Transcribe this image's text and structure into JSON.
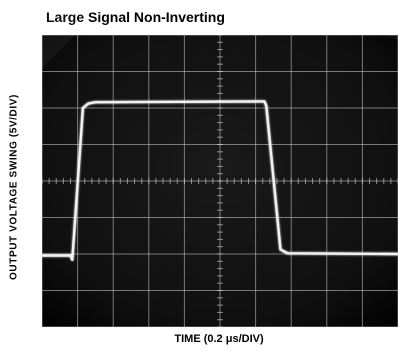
{
  "chart_data": {
    "type": "line",
    "title": "Large Signal Non-Inverting",
    "xlabel": "TIME (0.2 μs/DIV)",
    "ylabel": "OUTPUT VOLTAGE SWING (5V/DIV)",
    "x_unit": "μs",
    "y_unit": "V",
    "xlim": [
      0,
      2.0
    ],
    "ylim": [
      -20,
      20
    ],
    "x_per_div": 0.2,
    "y_per_div": 5,
    "grid": true,
    "background": "oscilloscope-photo",
    "trace_color": "#f2f2f2",
    "series": [
      {
        "x": [
          0,
          0.16,
          0.17,
          0.23,
          0.26,
          0.3,
          1.25,
          1.26,
          1.34,
          1.38,
          2.0
        ],
        "values": [
          -10.2,
          -10.2,
          -10.8,
          10.0,
          10.6,
          10.8,
          10.9,
          10.3,
          -9.4,
          -9.9,
          -10.0
        ]
      }
    ]
  }
}
